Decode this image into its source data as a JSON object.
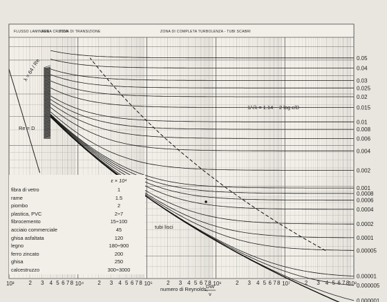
{
  "chart_data": {
    "type": "line",
    "title": "",
    "xlabel": "numero di Reynolds,",
    "xlabel_formula_num": "DW",
    "xlabel_formula_den": "ν",
    "x_scale": "log",
    "y_scale": "log",
    "xlim": [
      1000,
      100000000
    ],
    "ylim": [
      0.008,
      0.1
    ],
    "grid": true,
    "x_decade_labels": [
      "10³",
      "10⁴",
      "10⁵",
      "10⁶",
      "10⁷",
      "10⁸"
    ],
    "x_minor_labels": [
      "2",
      "3",
      "4",
      "5",
      "6",
      "7",
      "8"
    ],
    "y_label_text": [
      "0.05",
      "0.04",
      "0.03",
      "0.025",
      "0.02",
      "0.015",
      "0.01",
      "0.008",
      "0.006",
      "0.004",
      "0.002",
      "0.001",
      "0.0008",
      "0.0006",
      "0.0004",
      "0.0002",
      "0.0001",
      "0.00005",
      "0.00001",
      "0.000005",
      "0.000001"
    ],
    "roughness_values": [
      0.05,
      0.04,
      0.03,
      0.025,
      0.02,
      0.015,
      0.01,
      0.008,
      0.006,
      0.004,
      0.002,
      0.001,
      0.0008,
      0.0006,
      0.0004,
      0.0002,
      0.0001,
      5e-05,
      1e-05,
      5e-06,
      1e-06
    ],
    "zones": [
      {
        "text": "FLUSSO LAMINARE"
      },
      {
        "text": "ZONA CRITICA"
      },
      {
        "text": "ZONA DI TRANSIZIONE"
      },
      {
        "text": "ZONA DI COMPLETA TURBOLENZA - TUBI SCABRI"
      }
    ],
    "laminar_label": "λ = 64 / Re",
    "laminar_limit_label": "Re = D",
    "colebrook_formula": "1/√λ = 1.14 − 2 log ε/D",
    "smooth_label": "tubi lisci",
    "table_header": "ε × 10⁴",
    "materials": [
      {
        "name": "fibra di vetro",
        "value": "1"
      },
      {
        "name": "rame",
        "value": "1.5"
      },
      {
        "name": "piombo",
        "value": "2"
      },
      {
        "name": "plastica, PVC",
        "value": "2÷7"
      },
      {
        "name": "fibrocemento",
        "value": "15÷100"
      },
      {
        "name": "acciaio commerciale",
        "value": "45"
      },
      {
        "name": "ghisa asfaltata",
        "value": "120"
      },
      {
        "name": "legno",
        "value": "180÷900"
      },
      {
        "name": "ferro zincato",
        "value": "200"
      },
      {
        "name": "ghisa",
        "value": "250"
      },
      {
        "name": "calcestruzzo",
        "value": "300÷3000"
      }
    ]
  }
}
